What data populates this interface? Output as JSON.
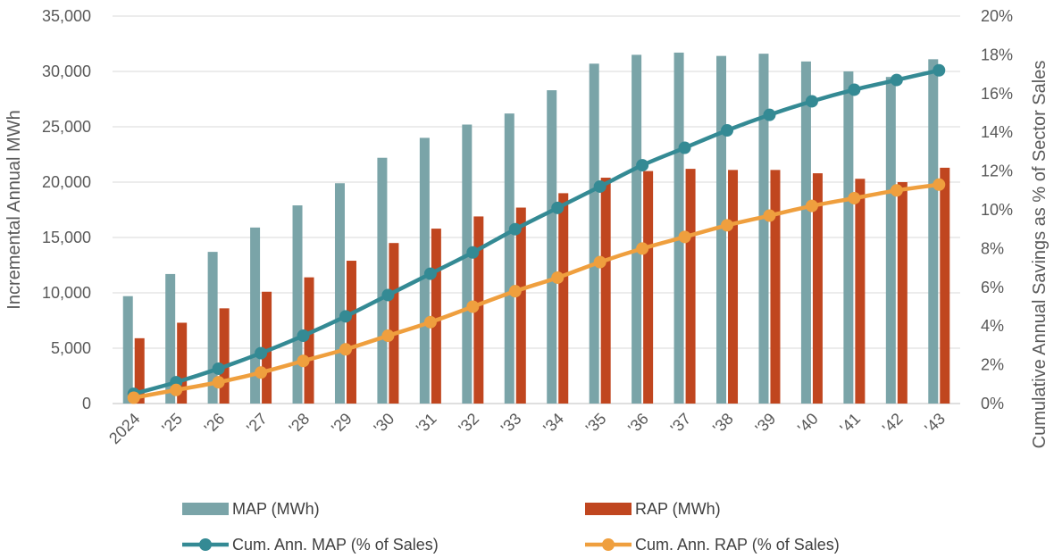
{
  "chart_data": {
    "type": "bar",
    "title": "",
    "categories": [
      "2024",
      "'25",
      "'26",
      "'27",
      "'28",
      "'29",
      "'30",
      "'31",
      "'32",
      "'33",
      "'34",
      "'35",
      "'36",
      "'37",
      "'38",
      "'39",
      "'40",
      "'41",
      "'42",
      "'43"
    ],
    "ylabel": "Incremental Annual MWh",
    "ylabel_right": "Cumulative Annual Savings as % of Sector Sales",
    "ylim": [
      0,
      35000
    ],
    "ylim_right": [
      0,
      20
    ],
    "yticks": [
      "0",
      "5,000",
      "10,000",
      "15,000",
      "20,000",
      "25,000",
      "30,000",
      "35,000"
    ],
    "yticks_right": [
      "0%",
      "2%",
      "4%",
      "6%",
      "8%",
      "10%",
      "12%",
      "14%",
      "16%",
      "18%",
      "20%"
    ],
    "grid": true,
    "legend_position": "bottom",
    "series": [
      {
        "name": "MAP (MWh)",
        "type": "bar",
        "axis": "left",
        "color": "#7aa4a8",
        "values": [
          9700,
          11700,
          13700,
          15900,
          17900,
          19900,
          22200,
          24000,
          25200,
          26200,
          28300,
          30700,
          31500,
          31700,
          31400,
          31600,
          30900,
          30000,
          29500,
          31100
        ]
      },
      {
        "name": "RAP (MWh)",
        "type": "bar",
        "axis": "left",
        "color": "#c0461f",
        "values": [
          5900,
          7300,
          8600,
          10100,
          11400,
          12900,
          14500,
          15800,
          16900,
          17700,
          19000,
          20400,
          21000,
          21200,
          21100,
          21100,
          20800,
          20300,
          20000,
          21300
        ]
      },
      {
        "name": "Cum. Ann. MAP (% of Sales)",
        "type": "line",
        "axis": "right",
        "color": "#348a94",
        "values": [
          0.5,
          1.1,
          1.8,
          2.6,
          3.5,
          4.5,
          5.6,
          6.7,
          7.8,
          9.0,
          10.1,
          11.2,
          12.3,
          13.2,
          14.1,
          14.9,
          15.6,
          16.2,
          16.7,
          17.2
        ]
      },
      {
        "name": "Cum. Ann. RAP (% of Sales)",
        "type": "line",
        "axis": "right",
        "color": "#ef9f3e",
        "values": [
          0.3,
          0.7,
          1.1,
          1.6,
          2.2,
          2.8,
          3.5,
          4.2,
          5.0,
          5.8,
          6.5,
          7.3,
          8.0,
          8.6,
          9.2,
          9.7,
          10.2,
          10.6,
          11.0,
          11.3
        ]
      }
    ]
  }
}
